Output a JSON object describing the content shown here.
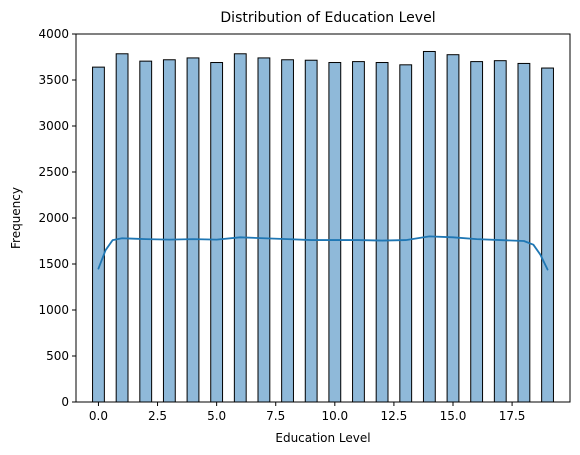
{
  "chart_data": {
    "type": "bar",
    "title": "Distribution of Education Level",
    "xlabel": "Education Level",
    "ylabel": "Frequency",
    "xlim": [
      -0.95,
      19.95
    ],
    "ylim": [
      0,
      4000
    ],
    "x_ticks": [
      0.0,
      2.5,
      5.0,
      7.5,
      10.0,
      12.5,
      15.0,
      17.5
    ],
    "x_tick_labels": [
      "0.0",
      "2.5",
      "5.0",
      "7.5",
      "10.0",
      "12.5",
      "15.0",
      "17.5"
    ],
    "y_ticks": [
      0,
      500,
      1000,
      1500,
      2000,
      2500,
      3000,
      3500,
      4000
    ],
    "y_tick_labels": [
      "0",
      "500",
      "1000",
      "1500",
      "2000",
      "2500",
      "3000",
      "3500",
      "4000"
    ],
    "bin_width": 0.5,
    "bars": [
      {
        "x": 0,
        "value": 3640
      },
      {
        "x": 1,
        "value": 3785
      },
      {
        "x": 2,
        "value": 3705
      },
      {
        "x": 3,
        "value": 3720
      },
      {
        "x": 4,
        "value": 3740
      },
      {
        "x": 5,
        "value": 3690
      },
      {
        "x": 6,
        "value": 3785
      },
      {
        "x": 7,
        "value": 3740
      },
      {
        "x": 8,
        "value": 3720
      },
      {
        "x": 9,
        "value": 3715
      },
      {
        "x": 10,
        "value": 3690
      },
      {
        "x": 11,
        "value": 3700
      },
      {
        "x": 12,
        "value": 3690
      },
      {
        "x": 13,
        "value": 3665
      },
      {
        "x": 14,
        "value": 3810
      },
      {
        "x": 15,
        "value": 3775
      },
      {
        "x": 16,
        "value": 3700
      },
      {
        "x": 17,
        "value": 3710
      },
      {
        "x": 18,
        "value": 3680
      },
      {
        "x": 19,
        "value": 3630
      }
    ],
    "kde_line": {
      "x": [
        0,
        0.3,
        0.6,
        1,
        1.5,
        2,
        3,
        4,
        5,
        6,
        7,
        8,
        9,
        10,
        11,
        12,
        13,
        14,
        15,
        16,
        17,
        18,
        18.4,
        18.7,
        19
      ],
      "y": [
        1450,
        1650,
        1760,
        1780,
        1775,
        1770,
        1765,
        1770,
        1765,
        1790,
        1780,
        1770,
        1760,
        1760,
        1760,
        1755,
        1760,
        1800,
        1790,
        1770,
        1760,
        1750,
        1710,
        1600,
        1440
      ]
    },
    "colors": {
      "bar_fill": "#8fb9d9",
      "bar_edge": "#000000",
      "kde_line": "#1f77b4"
    },
    "grid": false,
    "legend": "none"
  }
}
